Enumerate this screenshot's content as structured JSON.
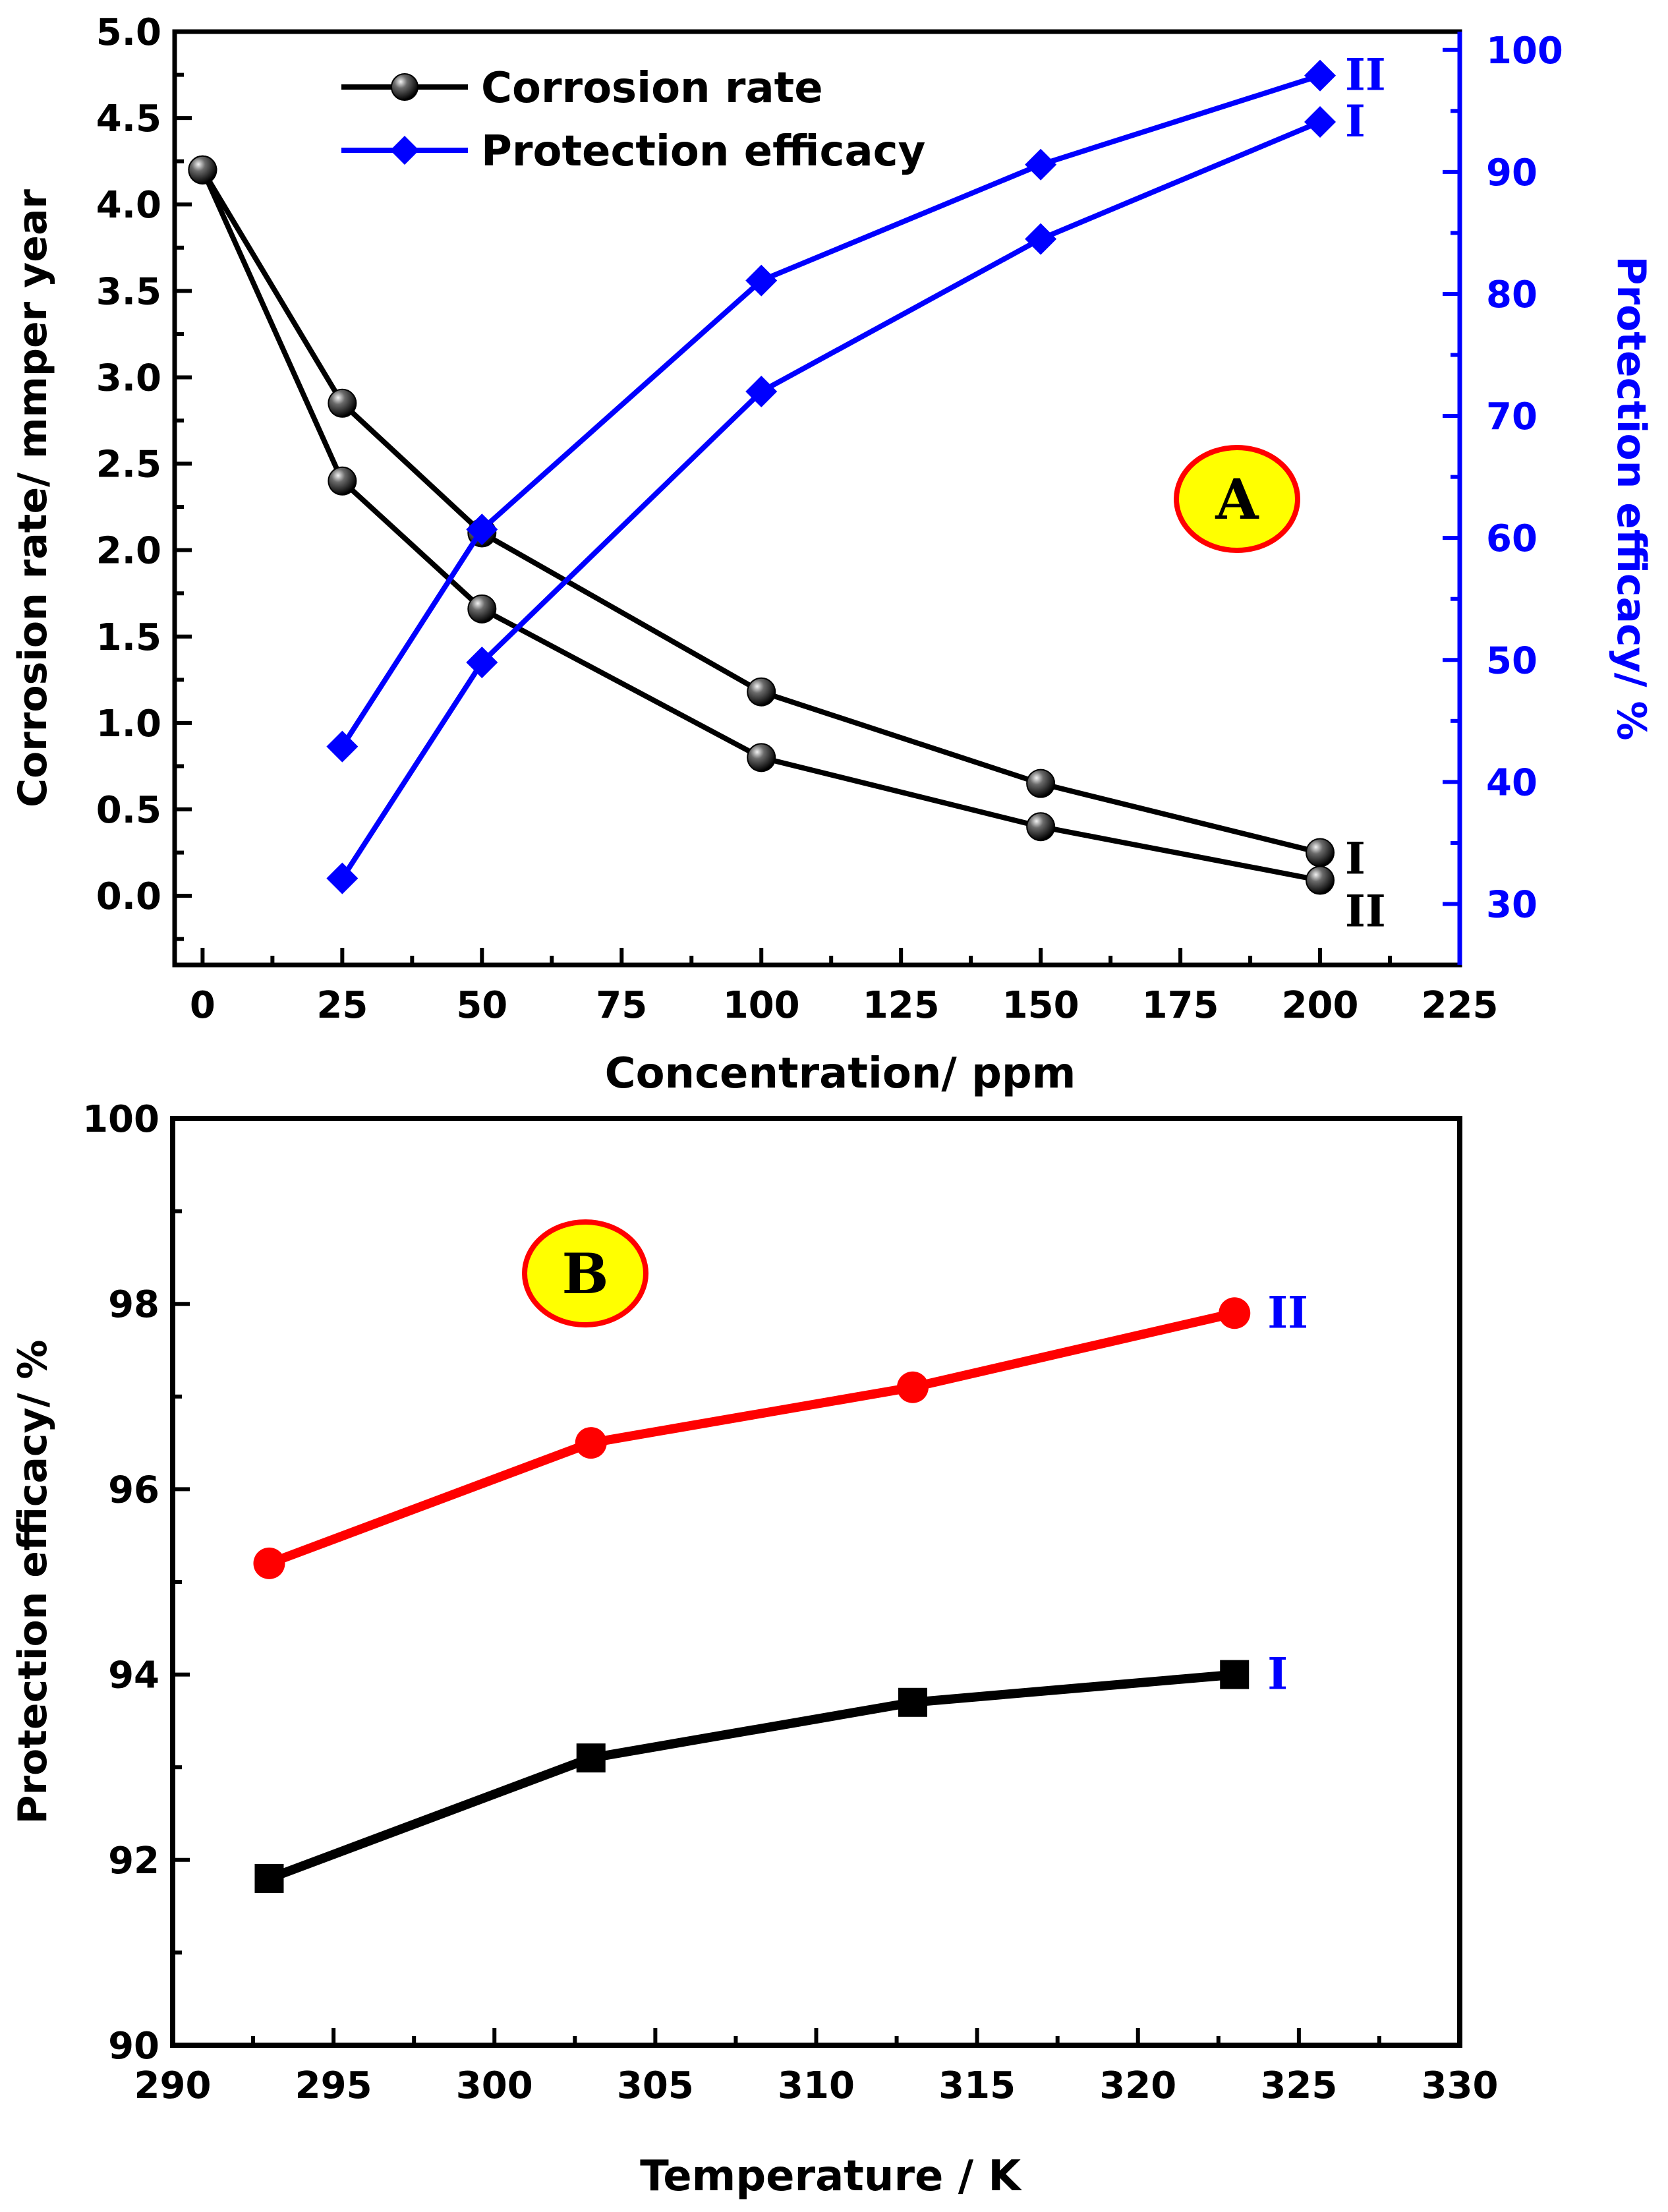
{
  "chart_data": [
    {
      "panel_label": "A",
      "type": "line",
      "xlabel": "Concentration/ ppm",
      "ylabel_left": "Corrosion rate/ mmper year",
      "ylabel_right": "Protection efficacy/ %",
      "xlim": [
        -5,
        225
      ],
      "xticks": [
        0,
        25,
        50,
        75,
        100,
        125,
        150,
        175,
        200,
        225
      ],
      "ylim_left": [
        -0.4,
        5.0
      ],
      "yticks_left": [
        0.0,
        0.5,
        1.0,
        1.5,
        2.0,
        2.5,
        3.0,
        3.5,
        4.0,
        4.5,
        5.0
      ],
      "ylim_right": [
        25,
        101.5
      ],
      "yticks_right": [
        30,
        40,
        50,
        60,
        70,
        80,
        90,
        100
      ],
      "legend": [
        "Corrosion rate",
        "Protection efficacy"
      ],
      "legend_position": "top-left",
      "colors": {
        "corrosion": "#000000",
        "efficacy": "#0000ff",
        "badge_fill": "#ffff00",
        "badge_stroke": "#ff0000"
      },
      "series": [
        {
          "name": "Corrosion rate I",
          "axis": "left",
          "label": "I",
          "x": [
            0,
            25,
            50,
            100,
            150,
            200
          ],
          "values": [
            4.2,
            2.85,
            2.1,
            1.18,
            0.65,
            0.25
          ]
        },
        {
          "name": "Corrosion rate II",
          "axis": "left",
          "label": "II",
          "x": [
            0,
            25,
            50,
            100,
            150,
            200
          ],
          "values": [
            4.2,
            2.4,
            1.66,
            0.8,
            0.4,
            0.09
          ]
        },
        {
          "name": "Protection efficacy I",
          "axis": "right",
          "label": "I",
          "x": [
            25,
            50,
            100,
            150,
            200
          ],
          "values": [
            32.1,
            49.8,
            72.0,
            84.5,
            94.1
          ]
        },
        {
          "name": "Protection efficacy II",
          "axis": "right",
          "label": "II",
          "x": [
            25,
            50,
            100,
            150,
            200
          ],
          "values": [
            42.9,
            60.7,
            81.1,
            90.6,
            97.9
          ]
        }
      ]
    },
    {
      "panel_label": "B",
      "type": "line",
      "xlabel": "Temperature / K",
      "ylabel": "Protection efficacy/ %",
      "xlim": [
        290,
        330
      ],
      "xticks": [
        290,
        295,
        300,
        305,
        310,
        315,
        320,
        325,
        330
      ],
      "ylim": [
        90,
        100
      ],
      "yticks": [
        90,
        92,
        94,
        96,
        98,
        100
      ],
      "colors": {
        "series_I": "#000000",
        "series_II": "#ff0000",
        "labels": "#0000ff",
        "badge_fill": "#ffff00",
        "badge_stroke": "#ff0000"
      },
      "series": [
        {
          "name": "I",
          "label": "I",
          "marker": "square",
          "x": [
            293,
            303,
            313,
            323
          ],
          "values": [
            91.8,
            93.1,
            93.7,
            94.0
          ]
        },
        {
          "name": "II",
          "label": "II",
          "marker": "circle",
          "x": [
            293,
            303,
            313,
            323
          ],
          "values": [
            95.2,
            96.5,
            97.1,
            97.9
          ]
        }
      ]
    }
  ]
}
